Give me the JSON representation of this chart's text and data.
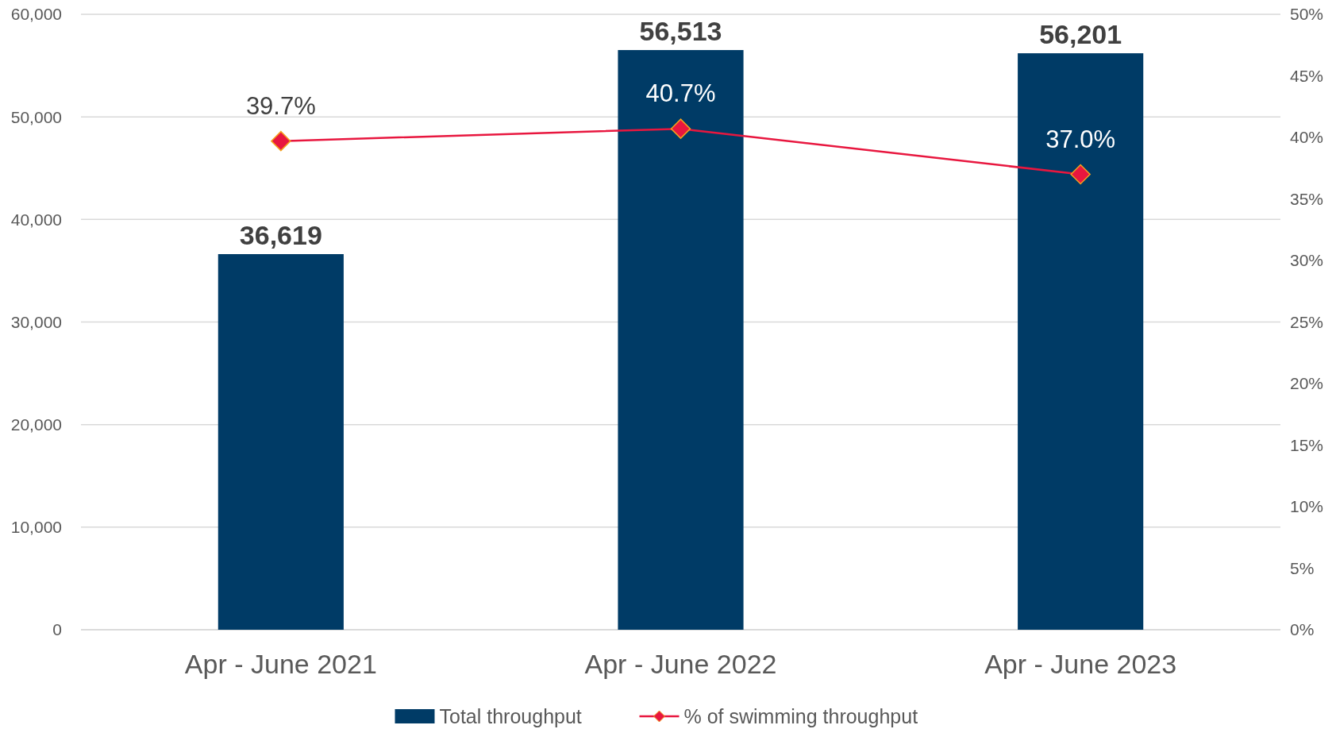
{
  "chart_data": {
    "type": "bar",
    "categories": [
      "Apr - June 2021",
      "Apr - June 2022",
      "Apr - June 2023"
    ],
    "series": [
      {
        "name": "Total throughput",
        "color": "#003b66",
        "values": [
          36619,
          56513,
          56201
        ],
        "value_labels": [
          "36,619",
          "56,513",
          "56,201"
        ]
      },
      {
        "name": "% of swimming throughput",
        "type": "line",
        "axis": "y2",
        "color": "#e8173f",
        "marker": "diamond",
        "values": [
          39.7,
          40.7,
          37.0
        ],
        "value_labels": [
          "39.7%",
          "40.7%",
          "37.0%"
        ]
      }
    ],
    "ylim": [
      0,
      60000
    ],
    "yticks": [
      {
        "value": 0,
        "label": "0"
      },
      {
        "value": 10000,
        "label": "10,000"
      },
      {
        "value": 20000,
        "label": "20,000"
      },
      {
        "value": 30000,
        "label": "30,000"
      },
      {
        "value": 40000,
        "label": "40,000"
      },
      {
        "value": 50000,
        "label": "50,000"
      },
      {
        "value": 60000,
        "label": "60,000"
      }
    ],
    "y2lim": [
      0,
      50
    ],
    "y2ticks": [
      {
        "value": 0,
        "label": "0%"
      },
      {
        "value": 5,
        "label": "5%"
      },
      {
        "value": 10,
        "label": "10%"
      },
      {
        "value": 15,
        "label": "15%"
      },
      {
        "value": 20,
        "label": "20%"
      },
      {
        "value": 25,
        "label": "25%"
      },
      {
        "value": 30,
        "label": "30%"
      },
      {
        "value": 35,
        "label": "35%"
      },
      {
        "value": 40,
        "label": "40%"
      },
      {
        "value": 45,
        "label": "45%"
      },
      {
        "value": 50,
        "label": "50%"
      }
    ],
    "grid": "y",
    "legend": "bottom"
  }
}
